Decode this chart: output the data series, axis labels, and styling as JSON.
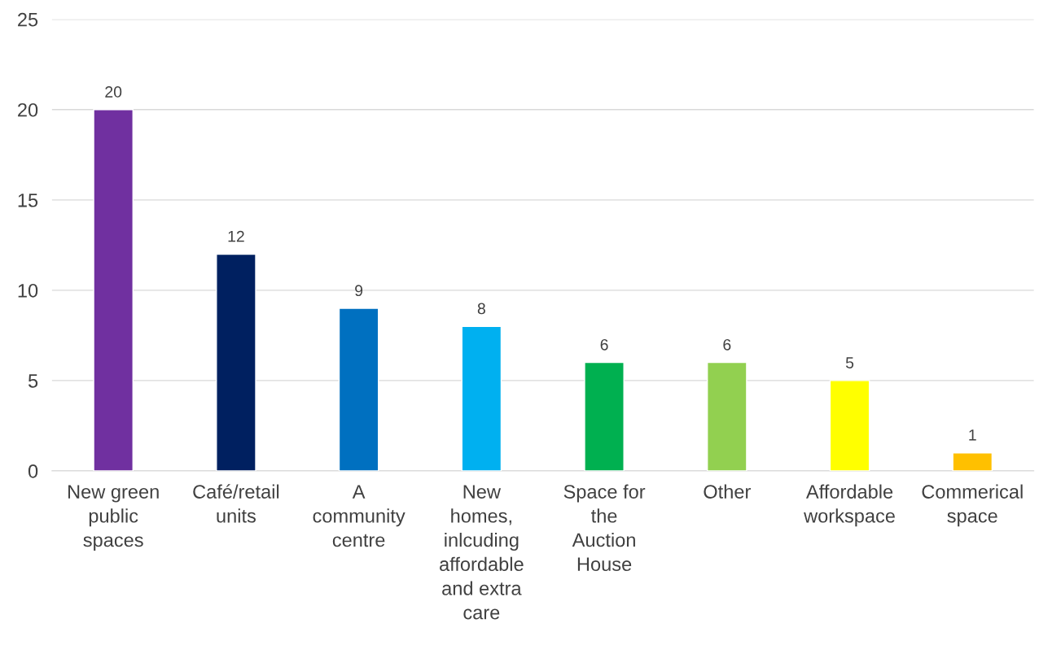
{
  "chart_data": {
    "type": "bar",
    "categories": [
      "New green\npublic\nspaces",
      "Café/retail\nunits",
      "A\ncommunity\ncentre",
      "New\nhomes,\ninlcuding\naffordable\nand extra\ncare",
      "Space for\nthe\nAuction\nHouse",
      "Other",
      "Affordable\nworkspace",
      "Commerical\nspace"
    ],
    "values": [
      20,
      12,
      9,
      8,
      6,
      6,
      5,
      1
    ],
    "colors": [
      "#7030a0",
      "#002060",
      "#0070c0",
      "#00b0f0",
      "#00b050",
      "#92d050",
      "#ffff00",
      "#ffc000"
    ],
    "ylim": [
      0,
      25
    ],
    "yticks": [
      0,
      5,
      10,
      15,
      20,
      25
    ],
    "grid": "y",
    "data_labels": true
  }
}
